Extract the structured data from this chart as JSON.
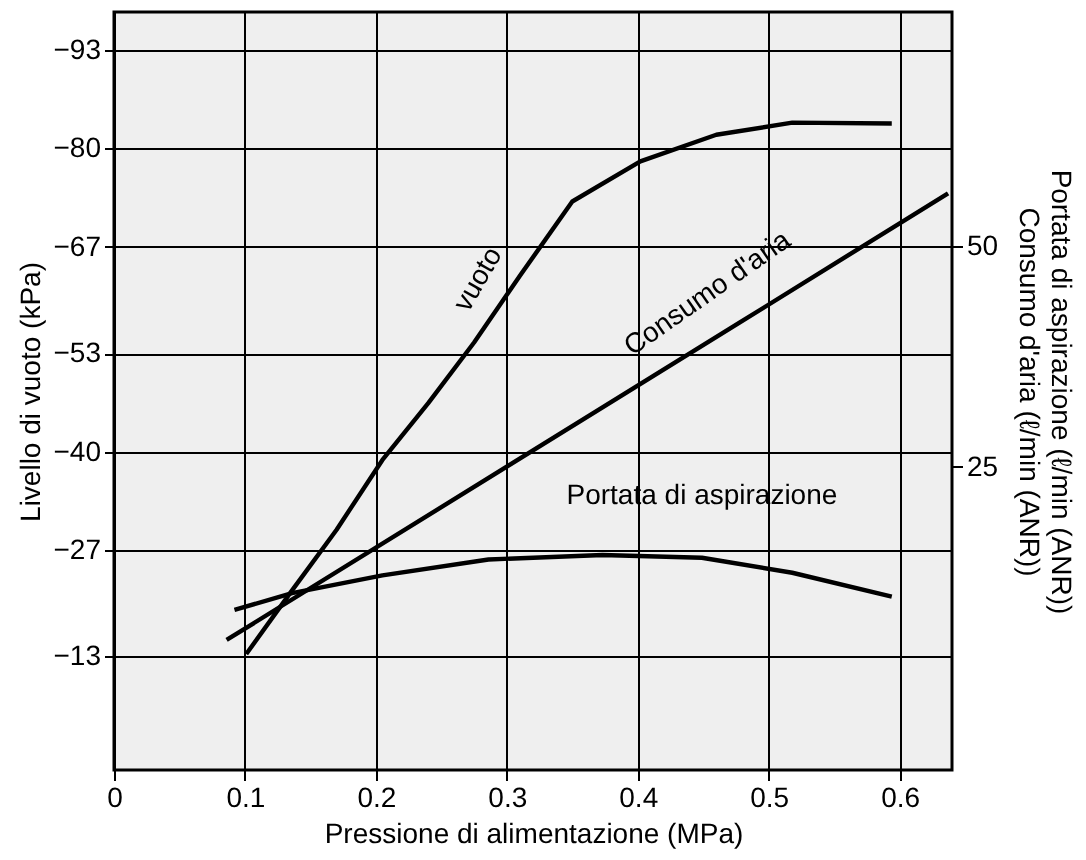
{
  "chart_data": {
    "type": "line",
    "xlabel": "Pressione di alimentazione (MPa)",
    "ylabel": "Livello di vuoto (kPa)",
    "y2label": "Portata di aspirazione (ℓ/min (ANR))\nConsumo d'aria (ℓ/min (ANR))",
    "xlim": [
      0,
      0.64
    ],
    "xticks": [
      0,
      0.1,
      0.2,
      0.3,
      0.4,
      0.5,
      0.6
    ],
    "ylim": [
      2,
      -98
    ],
    "yticks": [
      -93,
      -80,
      -67,
      -53,
      -40,
      -27,
      -13
    ],
    "y2lim": [
      -9.3,
      76.4
    ],
    "y2ticks": [
      25,
      50
    ],
    "grid": true,
    "marker": "none",
    "line_style": "solid",
    "series": [
      {
        "name": "vuoto",
        "color": "#000000",
        "x": [
          0.101,
          0.136,
          0.17,
          0.205,
          0.24,
          0.275,
          0.31,
          0.35,
          0.402,
          0.46,
          0.518,
          0.594
        ],
        "values": [
          -13.3,
          -21.7,
          -29.7,
          -38.9,
          -46.4,
          -54.4,
          -63.2,
          -73.0,
          -78.3,
          -81.8,
          -83.4,
          -83.3
        ]
      },
      {
        "name": "Consumo d'aria",
        "color": "#000000",
        "axis": "y2",
        "x": [
          0.086,
          0.478,
          0.637
        ],
        "values": [
          5.4,
          41.3,
          55.9
        ]
      },
      {
        "name": "Portata di aspirazione",
        "color": "#000000",
        "axis": "y2",
        "x": [
          0.092,
          0.136,
          0.205,
          0.286,
          0.373,
          0.449,
          0.518,
          0.594
        ],
        "values": [
          8.8,
          10.7,
          12.7,
          14.5,
          15.0,
          14.7,
          13.0,
          10.3
        ]
      }
    ]
  }
}
